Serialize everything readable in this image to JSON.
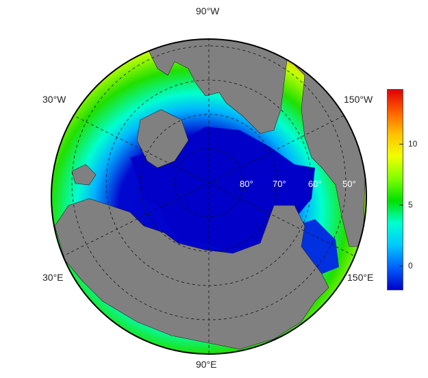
{
  "map": {
    "projection": "north-polar-stereographic",
    "land_color": "#808080",
    "ocean_fill": "sea-surface-temperature",
    "graticule": "dashed",
    "longitude_labels": {
      "top": "90°W",
      "left_upper": "30°W",
      "right_upper": "150°W",
      "left_lower": "30°E",
      "right_lower": "150°E",
      "bottom": "90°E"
    },
    "latitude_labels": [
      "80°",
      "70°",
      "60°",
      "50°"
    ]
  },
  "colorbar": {
    "ticks": [
      "0",
      "5",
      "10"
    ],
    "range": [
      -2,
      14.5
    ],
    "colors": [
      "#0000c8",
      "#0060ff",
      "#00c8ff",
      "#00ffd0",
      "#00e000",
      "#80ff00",
      "#f0ff00",
      "#ffc000",
      "#ff6000",
      "#e00000"
    ]
  }
}
